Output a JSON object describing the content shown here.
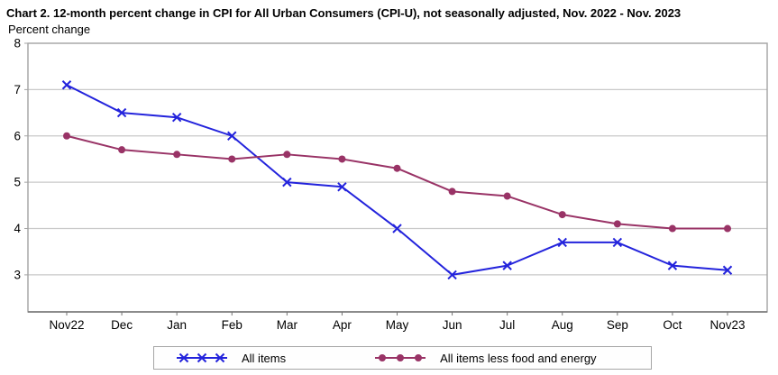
{
  "header": {
    "title": "Chart 2. 12-month percent change in CPI for All Urban Consumers (CPI-U), not seasonally adjusted, Nov. 2022 - Nov. 2023",
    "subtitle": "Percent change"
  },
  "chart_data": {
    "type": "line",
    "title": "Chart 2. 12-month percent change in CPI for All Urban Consumers (CPI-U), not seasonally adjusted, Nov. 2022 - Nov. 2023",
    "ylabel": "Percent change",
    "xlabel": "",
    "categories": [
      "Nov22",
      "Dec",
      "Jan",
      "Feb",
      "Mar",
      "Apr",
      "May",
      "Jun",
      "Jul",
      "Aug",
      "Sep",
      "Oct",
      "Nov23"
    ],
    "series": [
      {
        "name": "All items",
        "marker": "x",
        "color": "#2323dc",
        "values": [
          7.1,
          6.5,
          6.4,
          6.0,
          5.0,
          4.9,
          4.0,
          3.0,
          3.2,
          3.7,
          3.7,
          3.2,
          3.1
        ]
      },
      {
        "name": "All items less food and energy",
        "marker": "circle",
        "color": "#993366",
        "values": [
          6.0,
          5.7,
          5.6,
          5.5,
          5.6,
          5.5,
          5.3,
          4.8,
          4.7,
          4.3,
          4.1,
          4.0,
          4.0
        ]
      }
    ],
    "ylim": [
      2.2,
      8
    ],
    "yticks": [
      8,
      7,
      6,
      5,
      4,
      3
    ],
    "grid": "horizontal",
    "legend_position": "bottom",
    "colors": {
      "gridline": "#c9c9c9",
      "frame": "#a3a3a3",
      "axis": "#737373",
      "text": "#000000"
    }
  }
}
